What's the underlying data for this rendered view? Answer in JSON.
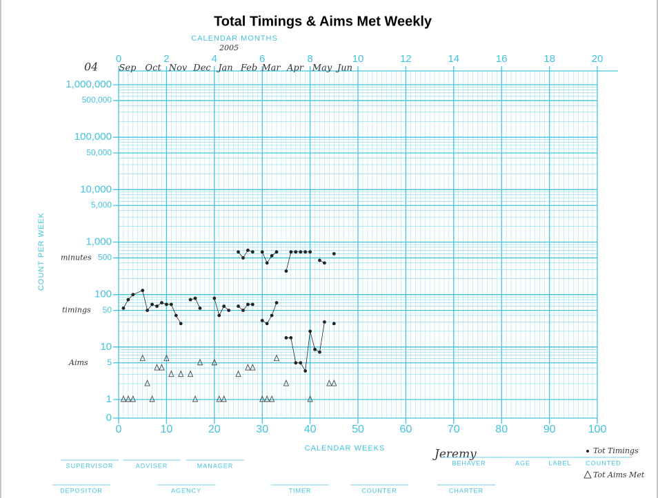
{
  "chart_data": {
    "type": "line",
    "title": "Total Timings & Aims Met Weekly",
    "top_axis_label": "CALENDAR MONTHS",
    "xlabel": "CALENDAR WEEKS",
    "ylabel": "COUNT PER WEEK",
    "log_y": true,
    "grid": true,
    "color": "#41c3df",
    "xlim": [
      0,
      100
    ],
    "xticks": [
      0,
      10,
      20,
      30,
      40,
      50,
      60,
      70,
      80,
      90,
      100
    ],
    "x2lim": [
      0,
      20
    ],
    "x2ticks": [
      0,
      2,
      4,
      6,
      8,
      10,
      12,
      14,
      16,
      18,
      20
    ],
    "ylim": [
      1,
      1000000
    ],
    "yticks": [
      {
        "value": 1000000,
        "label": "1,000,000"
      },
      {
        "value": 500000,
        "label": "500,000"
      },
      {
        "value": 100000,
        "label": "100,000"
      },
      {
        "value": 50000,
        "label": "50,000"
      },
      {
        "value": 10000,
        "label": "10,000"
      },
      {
        "value": 5000,
        "label": "5,000"
      },
      {
        "value": 1000,
        "label": "1,000"
      },
      500,
      100,
      50,
      10,
      5,
      1,
      0
    ],
    "year_start": "04",
    "year_next": "2005",
    "months": [
      "Sep",
      "Oct",
      "Nov",
      "Dec",
      "Jan",
      "Feb",
      "Mar",
      "Apr",
      "May",
      "Jun"
    ],
    "row_labels": [
      "minutes",
      "timings",
      "Aims"
    ],
    "behaver": "Jeremy",
    "series": [
      {
        "name": "Tot Timings",
        "color": "#222222",
        "marker": "dot",
        "line": true,
        "x": [
          1,
          2,
          3,
          5,
          6,
          7,
          8,
          9,
          10,
          11,
          12,
          13,
          14,
          15,
          16,
          17,
          19,
          20,
          21,
          22,
          23,
          24,
          25,
          26,
          27,
          28,
          29,
          30,
          31,
          32,
          33,
          34,
          35,
          36,
          37,
          38,
          39,
          40,
          41,
          42,
          43,
          44,
          45
        ],
        "values": [
          55,
          80,
          100,
          120,
          50,
          65,
          60,
          70,
          65,
          65,
          40,
          28,
          null,
          80,
          85,
          55,
          null,
          85,
          40,
          60,
          50,
          null,
          60,
          50,
          65,
          65,
          null,
          32,
          28,
          40,
          70,
          null,
          15,
          15,
          5,
          5,
          3.5,
          20,
          9,
          8,
          30,
          null,
          28
        ]
      },
      {
        "name": "minutes",
        "color": "#222222",
        "marker": "dot",
        "line": true,
        "x": [
          25,
          26,
          27,
          28,
          29,
          30,
          31,
          32,
          33,
          34,
          35,
          36,
          37,
          38,
          39,
          40,
          41,
          42,
          43,
          44,
          45
        ],
        "values": [
          650,
          500,
          700,
          650,
          null,
          650,
          400,
          550,
          650,
          null,
          280,
          650,
          650,
          650,
          650,
          650,
          null,
          450,
          400,
          null,
          600
        ]
      },
      {
        "name": "Tot Aims Met",
        "color": "#444444",
        "marker": "triangle",
        "line": false,
        "x": [
          1,
          2,
          3,
          5,
          6,
          7,
          8,
          9,
          10,
          11,
          13,
          15,
          16,
          17,
          20,
          21,
          22,
          25,
          27,
          28,
          30,
          31,
          32,
          33,
          35,
          40,
          44,
          45
        ],
        "values": [
          1,
          1,
          1,
          6,
          2,
          1,
          4,
          4,
          6,
          3,
          3,
          3,
          1,
          5,
          5,
          1,
          1,
          3,
          4,
          4,
          1,
          1,
          1,
          6,
          2,
          1,
          2,
          2
        ]
      }
    ],
    "footer": [
      "SUPERVISOR",
      "ADVISER",
      "MANAGER",
      "BEHAVER",
      "AGE",
      "LABEL",
      "COUNTED",
      "DEPOSITOR",
      "AGENCY",
      "TIMER",
      "COUNTER",
      "CHARTER"
    ]
  }
}
